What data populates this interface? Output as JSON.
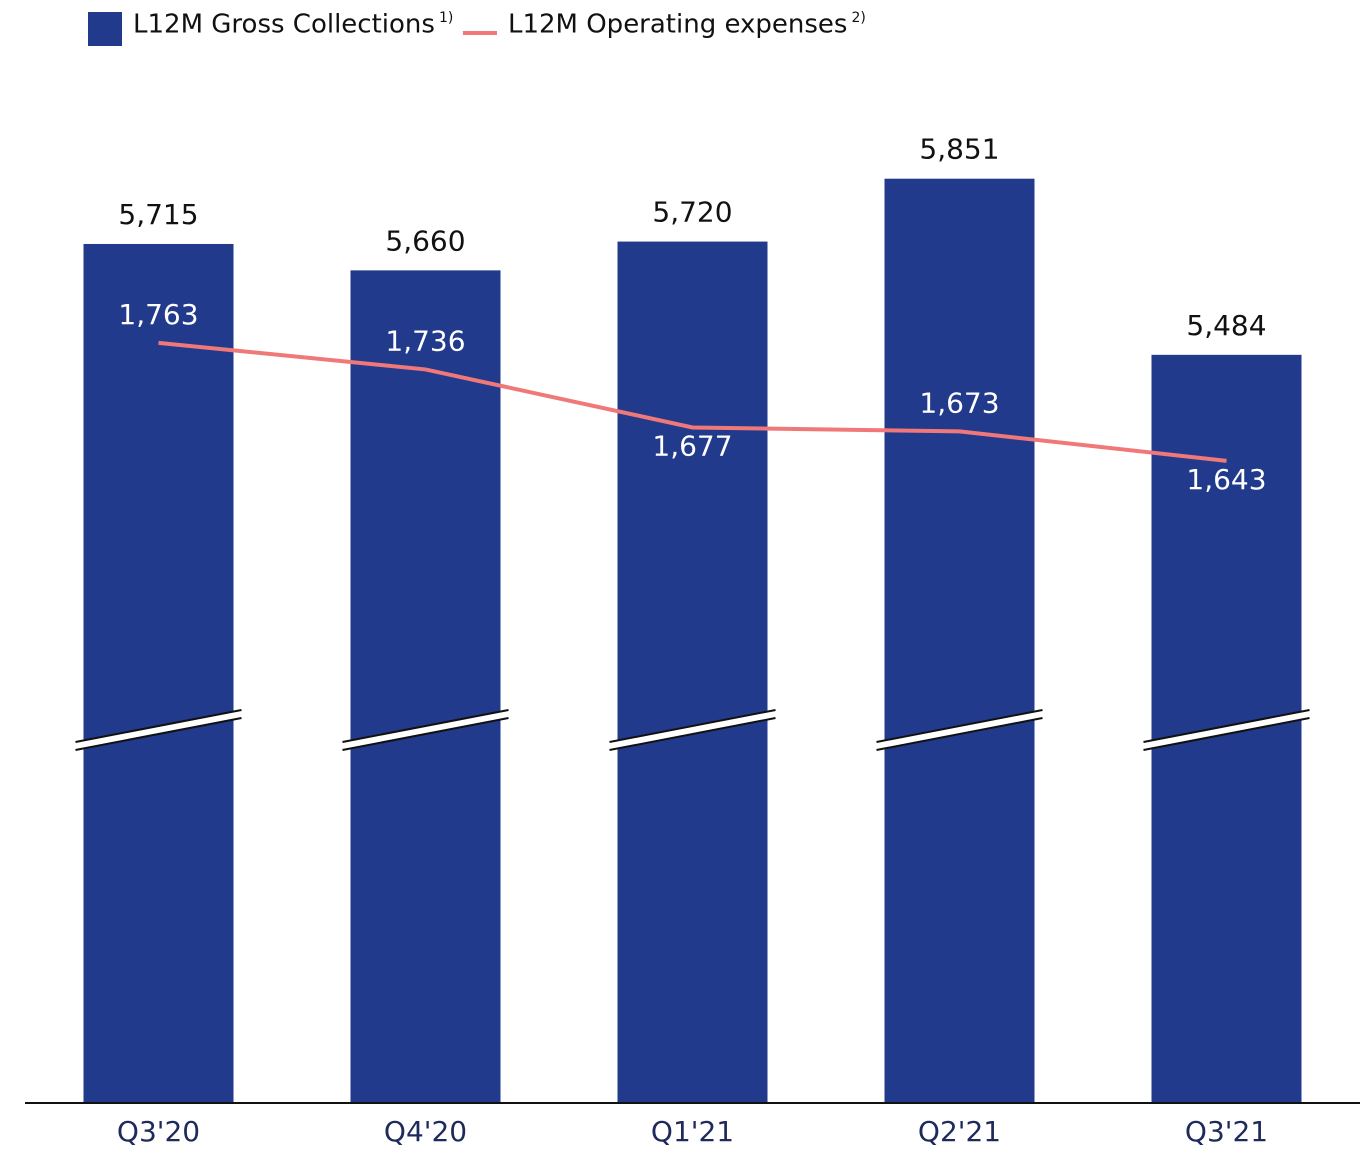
{
  "chart_data": {
    "type": "bar",
    "categories": [
      "Q3'20",
      "Q4'20",
      "Q1'21",
      "Q2'21",
      "Q3'21"
    ],
    "ylim": [
      3925,
      6015
    ],
    "y2lim": [
      990,
      2010
    ],
    "axis_break": true,
    "series": [
      {
        "name": "L12M Gross Collections",
        "note": "1)",
        "color": "#223a8c",
        "values": [
          5715,
          5660,
          5720,
          5851,
          5484
        ],
        "value_labels": [
          "5,715",
          "5,660",
          "5,720",
          "5,851",
          "5,484"
        ]
      },
      {
        "name": "L12M Operating expenses",
        "note": "2)",
        "color": "#f07878",
        "type": "line",
        "axis": "y2",
        "values": [
          1763,
          1736,
          1677,
          1673,
          1643
        ],
        "value_labels": [
          "1,763",
          "1,736",
          "1,677",
          "1,673",
          "1,643"
        ],
        "label_positions": [
          "above",
          "above",
          "below",
          "above",
          "below"
        ]
      }
    ]
  }
}
